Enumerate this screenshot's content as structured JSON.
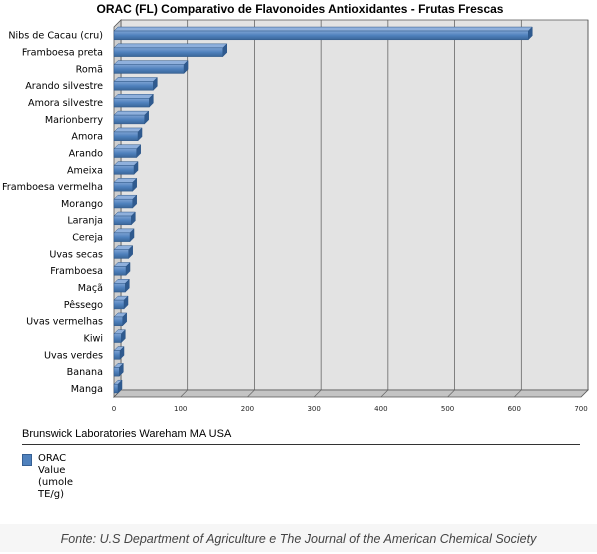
{
  "chart_data": {
    "type": "bar",
    "orientation": "horizontal",
    "title": "ORAC (FL) Comparativo de Flavonoides Antioxidantes - Frutas Frescas",
    "categories": [
      "Nibs de Cacau (cru)",
      "Framboesa preta",
      "Romã",
      "Arando silvestre",
      "Amora silvestre",
      "Marionberry",
      "Amora",
      "Arando",
      "Ameixa",
      "Framboesa vermelha",
      "Morango",
      "Laranja",
      "Cereja",
      "Uvas secas",
      "Framboesa",
      "Maçã",
      "Pêssego",
      "Uvas vermelhas",
      "Kiwi",
      "Uvas verdes",
      "Banana",
      "Manga"
    ],
    "series": [
      {
        "name": "ORAC Value (umole TE/g)",
        "values": [
          621,
          163,
          105,
          59,
          53,
          46,
          36,
          34,
          30,
          28,
          28,
          26,
          24,
          22,
          18,
          17,
          15,
          13,
          11,
          9,
          8,
          6
        ]
      }
    ],
    "xlim": [
      0,
      700
    ],
    "xticks": [
      0,
      100,
      200,
      300,
      400,
      500,
      600,
      700
    ],
    "grid": "vertical",
    "legend_position": "bottom-left",
    "bar_color": "#4f81bd"
  },
  "legend": {
    "title": "Brunswick Laboratories Wareham MA USA",
    "label": "ORAC Value (umole TE/g)"
  },
  "footer": {
    "source": "Fonte: U.S Department of Agriculture e The Journal of the American Chemical Society"
  }
}
